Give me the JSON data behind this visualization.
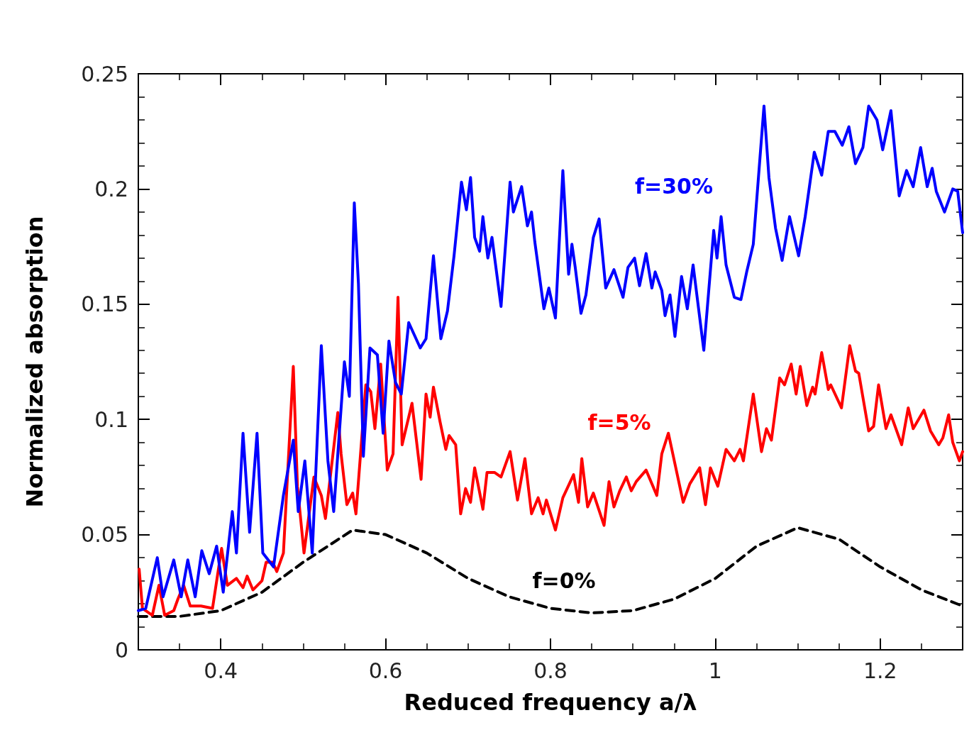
{
  "chart_data": {
    "type": "line",
    "xlabel": "Reduced frequency a/λ",
    "ylabel": "Normalized absorption",
    "xlim": [
      0.3,
      1.3
    ],
    "xticks": [
      0.4,
      0.6,
      0.8,
      1,
      1.2
    ],
    "ylim": [
      0,
      0.25
    ],
    "yticks": [
      0,
      0.05,
      0.1,
      0.15,
      0.2,
      0.25
    ],
    "grid": false,
    "marker": "none",
    "series": [
      {
        "name": "f=30%",
        "color": "#0000ff",
        "line_style": "solid",
        "x": [
          0.3,
          0.309,
          0.323,
          0.33,
          0.343,
          0.352,
          0.36,
          0.369,
          0.377,
          0.386,
          0.395,
          0.403,
          0.414,
          0.419,
          0.427,
          0.435,
          0.444,
          0.451,
          0.464,
          0.476,
          0.488,
          0.494,
          0.502,
          0.511,
          0.522,
          0.53,
          0.537,
          0.55,
          0.556,
          0.562,
          0.567,
          0.573,
          0.581,
          0.59,
          0.597,
          0.604,
          0.612,
          0.619,
          0.628,
          0.642,
          0.649,
          0.658,
          0.667,
          0.675,
          0.683,
          0.692,
          0.698,
          0.703,
          0.708,
          0.714,
          0.718,
          0.724,
          0.729,
          0.74,
          0.751,
          0.755,
          0.765,
          0.772,
          0.777,
          0.781,
          0.792,
          0.798,
          0.806,
          0.815,
          0.822,
          0.826,
          0.83,
          0.837,
          0.843,
          0.852,
          0.859,
          0.867,
          0.877,
          0.888,
          0.894,
          0.902,
          0.908,
          0.916,
          0.923,
          0.927,
          0.935,
          0.939,
          0.945,
          0.951,
          0.959,
          0.966,
          0.973,
          0.986,
          0.998,
          1.002,
          1.007,
          1.013,
          1.023,
          1.031,
          1.038,
          1.046,
          1.059,
          1.065,
          1.073,
          1.081,
          1.09,
          1.101,
          1.109,
          1.12,
          1.129,
          1.137,
          1.145,
          1.154,
          1.162,
          1.17,
          1.179,
          1.186,
          1.196,
          1.203,
          1.213,
          1.223,
          1.232,
          1.24,
          1.249,
          1.257,
          1.263,
          1.268,
          1.278,
          1.288,
          1.294,
          1.3
        ],
        "values": [
          0.017,
          0.018,
          0.04,
          0.023,
          0.039,
          0.023,
          0.039,
          0.023,
          0.043,
          0.033,
          0.045,
          0.025,
          0.06,
          0.042,
          0.094,
          0.051,
          0.094,
          0.042,
          0.036,
          0.067,
          0.091,
          0.06,
          0.082,
          0.042,
          0.132,
          0.082,
          0.06,
          0.125,
          0.11,
          0.194,
          0.159,
          0.084,
          0.131,
          0.128,
          0.094,
          0.134,
          0.116,
          0.111,
          0.142,
          0.131,
          0.135,
          0.171,
          0.135,
          0.147,
          0.171,
          0.203,
          0.191,
          0.205,
          0.179,
          0.173,
          0.188,
          0.17,
          0.179,
          0.149,
          0.203,
          0.19,
          0.201,
          0.184,
          0.19,
          0.177,
          0.148,
          0.157,
          0.144,
          0.208,
          0.163,
          0.176,
          0.166,
          0.146,
          0.154,
          0.179,
          0.187,
          0.157,
          0.165,
          0.153,
          0.166,
          0.17,
          0.158,
          0.172,
          0.157,
          0.164,
          0.156,
          0.145,
          0.154,
          0.136,
          0.162,
          0.148,
          0.167,
          0.13,
          0.182,
          0.17,
          0.188,
          0.167,
          0.153,
          0.152,
          0.164,
          0.176,
          0.236,
          0.205,
          0.183,
          0.169,
          0.188,
          0.171,
          0.188,
          0.216,
          0.206,
          0.225,
          0.225,
          0.219,
          0.227,
          0.211,
          0.218,
          0.236,
          0.23,
          0.217,
          0.234,
          0.197,
          0.208,
          0.201,
          0.218,
          0.201,
          0.209,
          0.199,
          0.19,
          0.2,
          0.199,
          0.181
        ]
      },
      {
        "name": "f=5%",
        "color": "#ff0000",
        "line_style": "solid",
        "x": [
          0.301,
          0.305,
          0.317,
          0.325,
          0.332,
          0.343,
          0.348,
          0.355,
          0.363,
          0.376,
          0.39,
          0.401,
          0.408,
          0.419,
          0.427,
          0.432,
          0.439,
          0.45,
          0.455,
          0.463,
          0.468,
          0.476,
          0.488,
          0.493,
          0.501,
          0.513,
          0.522,
          0.527,
          0.542,
          0.546,
          0.553,
          0.56,
          0.564,
          0.576,
          0.582,
          0.587,
          0.594,
          0.602,
          0.609,
          0.615,
          0.62,
          0.632,
          0.643,
          0.649,
          0.654,
          0.658,
          0.666,
          0.673,
          0.677,
          0.685,
          0.691,
          0.697,
          0.703,
          0.708,
          0.712,
          0.718,
          0.723,
          0.732,
          0.74,
          0.751,
          0.76,
          0.769,
          0.777,
          0.785,
          0.791,
          0.795,
          0.806,
          0.815,
          0.828,
          0.834,
          0.838,
          0.845,
          0.852,
          0.865,
          0.871,
          0.877,
          0.884,
          0.892,
          0.898,
          0.904,
          0.916,
          0.929,
          0.935,
          0.943,
          0.961,
          0.969,
          0.981,
          0.988,
          0.994,
          1.003,
          1.013,
          1.023,
          1.03,
          1.034,
          1.046,
          1.056,
          1.062,
          1.068,
          1.078,
          1.084,
          1.092,
          1.098,
          1.103,
          1.111,
          1.118,
          1.121,
          1.129,
          1.137,
          1.14,
          1.153,
          1.163,
          1.17,
          1.174,
          1.186,
          1.192,
          1.198,
          1.207,
          1.213,
          1.226,
          1.234,
          1.24,
          1.253,
          1.261,
          1.271,
          1.276,
          1.283,
          1.288,
          1.296,
          1.3
        ],
        "values": [
          0.035,
          0.018,
          0.015,
          0.028,
          0.015,
          0.017,
          0.022,
          0.028,
          0.019,
          0.019,
          0.018,
          0.044,
          0.028,
          0.031,
          0.027,
          0.032,
          0.026,
          0.03,
          0.038,
          0.038,
          0.034,
          0.042,
          0.123,
          0.071,
          0.042,
          0.075,
          0.067,
          0.057,
          0.103,
          0.085,
          0.063,
          0.068,
          0.059,
          0.115,
          0.112,
          0.096,
          0.124,
          0.078,
          0.085,
          0.153,
          0.089,
          0.107,
          0.074,
          0.111,
          0.101,
          0.114,
          0.099,
          0.087,
          0.093,
          0.089,
          0.059,
          0.07,
          0.064,
          0.079,
          0.072,
          0.061,
          0.077,
          0.077,
          0.075,
          0.086,
          0.065,
          0.083,
          0.059,
          0.066,
          0.059,
          0.065,
          0.052,
          0.066,
          0.076,
          0.064,
          0.083,
          0.062,
          0.068,
          0.054,
          0.073,
          0.062,
          0.069,
          0.075,
          0.069,
          0.073,
          0.078,
          0.067,
          0.085,
          0.094,
          0.064,
          0.072,
          0.079,
          0.063,
          0.079,
          0.071,
          0.087,
          0.082,
          0.087,
          0.082,
          0.111,
          0.086,
          0.096,
          0.091,
          0.118,
          0.115,
          0.124,
          0.111,
          0.123,
          0.106,
          0.114,
          0.111,
          0.129,
          0.113,
          0.115,
          0.105,
          0.132,
          0.121,
          0.12,
          0.095,
          0.097,
          0.115,
          0.096,
          0.102,
          0.089,
          0.105,
          0.096,
          0.104,
          0.095,
          0.089,
          0.092,
          0.102,
          0.09,
          0.082,
          0.086
        ]
      },
      {
        "name": "f=0%",
        "color": "#000000",
        "line_style": "dashed",
        "x": [
          0.3,
          0.35,
          0.4,
          0.45,
          0.5,
          0.56,
          0.6,
          0.65,
          0.7,
          0.75,
          0.8,
          0.85,
          0.9,
          0.95,
          1.0,
          1.05,
          1.1,
          1.15,
          1.2,
          1.25,
          1.3
        ],
        "values": [
          0.0145,
          0.0145,
          0.017,
          0.025,
          0.038,
          0.052,
          0.05,
          0.042,
          0.031,
          0.023,
          0.018,
          0.016,
          0.017,
          0.022,
          0.031,
          0.045,
          0.053,
          0.048,
          0.036,
          0.026,
          0.019
        ]
      }
    ]
  }
}
